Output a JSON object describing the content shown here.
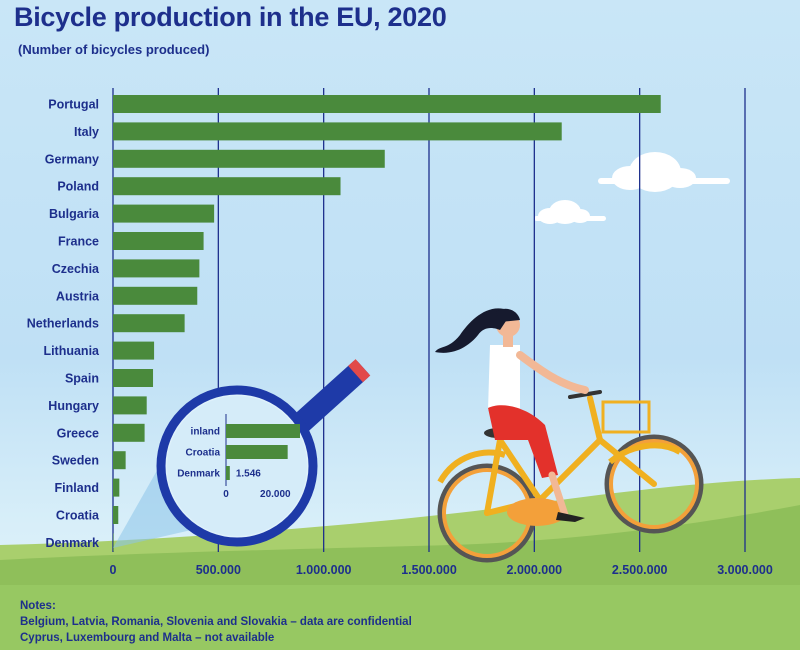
{
  "title": "Bicycle production in the EU, 2020",
  "subtitle": "(Number of bicycles produced)",
  "notes": {
    "heading": "Notes:",
    "lines": [
      "Belgium, Latvia, Romania, Slovenia and Slovakia – data are confidential",
      "Cyprus, Luxembourg and Malta – not available"
    ]
  },
  "colors": {
    "bar": "#4a8a3c",
    "text": "#1d2f8c",
    "grid": "#1d2f8c",
    "hill": "#8fbf5a",
    "magnifier": "#1e3aa8"
  },
  "chart_data": {
    "type": "bar",
    "orientation": "horizontal",
    "title": "Bicycle production in the EU, 2020",
    "subtitle": "(Number of bicycles produced)",
    "categories": [
      "Portugal",
      "Italy",
      "Germany",
      "Poland",
      "Bulgaria",
      "France",
      "Czechia",
      "Austria",
      "Netherlands",
      "Lithuania",
      "Spain",
      "Hungary",
      "Greece",
      "Sweden",
      "Finland",
      "Croatia",
      "Denmark"
    ],
    "values": [
      2600000,
      2130000,
      1290000,
      1080000,
      480000,
      430000,
      410000,
      400000,
      340000,
      195000,
      190000,
      160000,
      150000,
      60000,
      30000,
      25000,
      1546
    ],
    "xlim": [
      0,
      3000000
    ],
    "x_ticks": [
      0,
      500000,
      1000000,
      1500000,
      2000000,
      2500000,
      3000000
    ],
    "x_tick_labels": [
      "0",
      "500.000",
      "1.000.000",
      "1.500.000",
      "2.000.000",
      "2.500.000",
      "3.000.000"
    ],
    "grid": "vertical",
    "inset": {
      "categories": [
        "Finland",
        "Croatia",
        "Denmark"
      ],
      "visible_labels": [
        "inland",
        "Croatia",
        "Denmark"
      ],
      "values": [
        30000,
        25000,
        1546
      ],
      "data_labels": {
        "Denmark": "1.546"
      },
      "xlim": [
        0,
        30000
      ],
      "x_ticks": [
        0,
        20000
      ],
      "x_tick_labels": [
        "0",
        "20.000"
      ]
    }
  }
}
